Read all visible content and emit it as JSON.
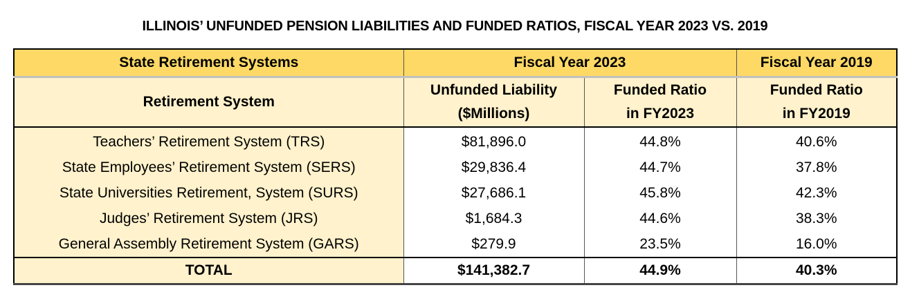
{
  "title": "ILLINOIS’ UNFUNDED PENSION LIABILITIES AND FUNDED RATIOS, FISCAL YEAR 2023 VS. 2019",
  "colors": {
    "header_band": "#fed966",
    "header_sub": "#fff2cc",
    "first_column": "#fff2cc"
  },
  "table": {
    "group_headers": [
      "State Retirement Systems",
      "Fiscal Year 2023",
      "Fiscal Year 2019"
    ],
    "columns": [
      {
        "line1": "Retirement System",
        "line2": ""
      },
      {
        "line1": "Unfunded Liability",
        "line2": "($Millions)"
      },
      {
        "line1": "Funded Ratio",
        "line2": "in FY2023"
      },
      {
        "line1": "Funded Ratio",
        "line2": "in FY2019"
      }
    ],
    "rows": [
      {
        "system": "Teachers’ Retirement System (TRS)",
        "unfunded": "$81,896.0",
        "fr2023": "44.8%",
        "fr2019": "40.6%"
      },
      {
        "system": "State Employees’ Retirement System (SERS)",
        "unfunded": "$29,836.4",
        "fr2023": "44.7%",
        "fr2019": "37.8%"
      },
      {
        "system": "State Universities Retirement, System (SURS)",
        "unfunded": "$27,686.1",
        "fr2023": "45.8%",
        "fr2019": "42.3%"
      },
      {
        "system": "Judges’ Retirement System (JRS)",
        "unfunded": "$1,684.3",
        "fr2023": "44.6%",
        "fr2019": "38.3%"
      },
      {
        "system": "General Assembly Retirement System (GARS)",
        "unfunded": "$279.9",
        "fr2023": "23.5%",
        "fr2019": "16.0%"
      }
    ],
    "total": {
      "label": "TOTAL",
      "unfunded": "$141,382.7",
      "fr2023": "44.9%",
      "fr2019": "40.3%"
    }
  }
}
